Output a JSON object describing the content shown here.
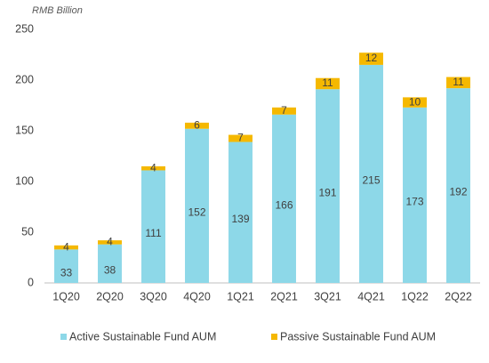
{
  "chart_data": {
    "type": "bar",
    "stacked": true,
    "y_axis_label": "RMB Billion",
    "categories": [
      "1Q20",
      "2Q20",
      "3Q20",
      "4Q20",
      "1Q21",
      "2Q21",
      "3Q21",
      "4Q21",
      "1Q22",
      "2Q22"
    ],
    "series": [
      {
        "name": "Active Sustainable Fund AUM",
        "color": "#8dd8e8",
        "values": [
          33,
          38,
          111,
          152,
          139,
          166,
          191,
          215,
          173,
          192
        ]
      },
      {
        "name": "Passive Sustainable Fund AUM",
        "color": "#f5b800",
        "values": [
          4,
          4,
          4,
          6,
          7,
          7,
          11,
          12,
          10,
          11
        ]
      }
    ],
    "ylim": [
      0,
      250
    ],
    "yticks": [
      0,
      50,
      100,
      150,
      200,
      250
    ],
    "grid": false,
    "legend": "bottom"
  }
}
